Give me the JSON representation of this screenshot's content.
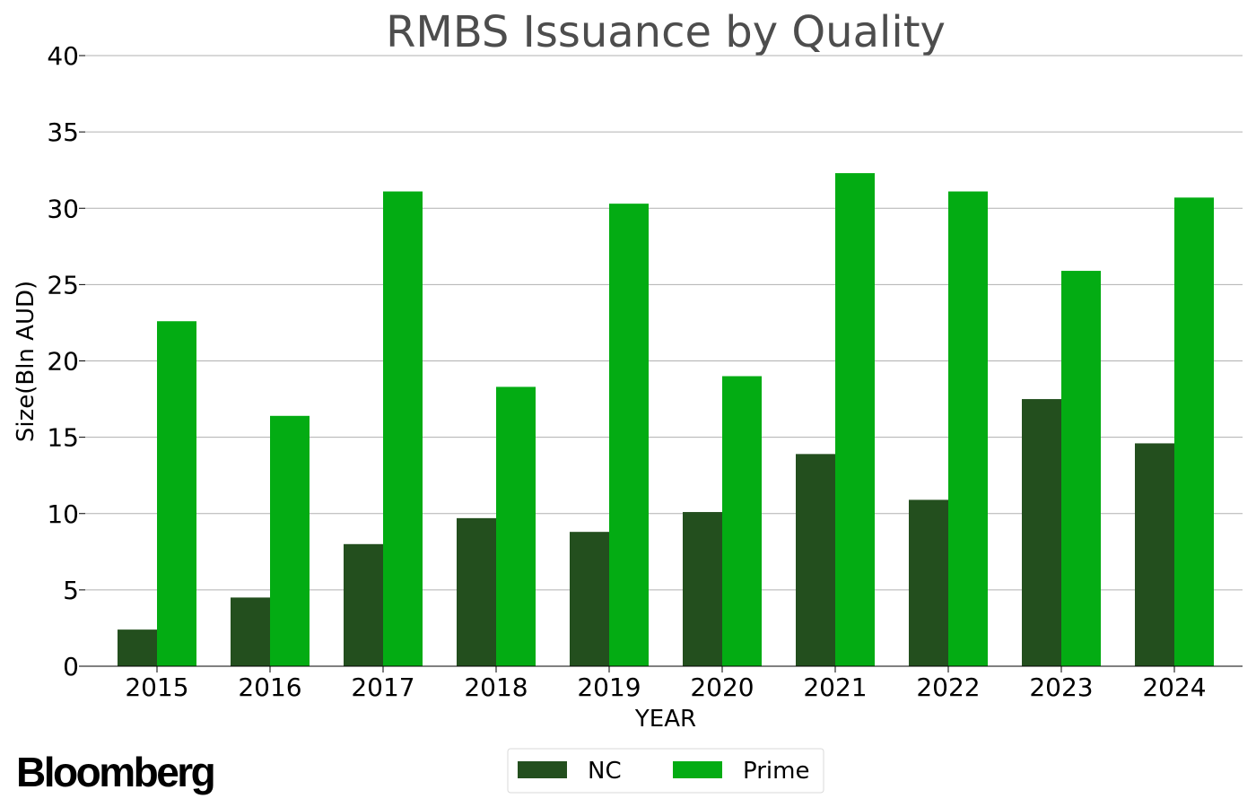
{
  "brand": {
    "logo_text": "Bloomberg"
  },
  "chart_data": {
    "type": "bar",
    "title": "RMBS Issuance by Quality",
    "xlabel": "YEAR",
    "ylabel": "Size(Bln AUD)",
    "categories": [
      "2015",
      "2016",
      "2017",
      "2018",
      "2019",
      "2020",
      "2021",
      "2022",
      "2023",
      "2024"
    ],
    "series": [
      {
        "name": "NC",
        "color": "#234f1e",
        "values": [
          2.4,
          4.5,
          8.0,
          9.7,
          8.8,
          10.1,
          13.9,
          10.9,
          17.5,
          14.6
        ]
      },
      {
        "name": "Prime",
        "color": "#03ac13",
        "values": [
          22.6,
          16.4,
          31.1,
          18.3,
          30.3,
          19.0,
          32.3,
          31.1,
          25.9,
          30.7
        ]
      }
    ],
    "ylim": [
      0,
      40
    ],
    "yticks": [
      0,
      5,
      10,
      15,
      20,
      25,
      30,
      35,
      40
    ],
    "grid": true,
    "legend_position": "bottom-center",
    "colors": {
      "title": "#4d4d4d",
      "grid": "#b0b0b0",
      "axis": "#000000",
      "text": "#000000"
    }
  }
}
